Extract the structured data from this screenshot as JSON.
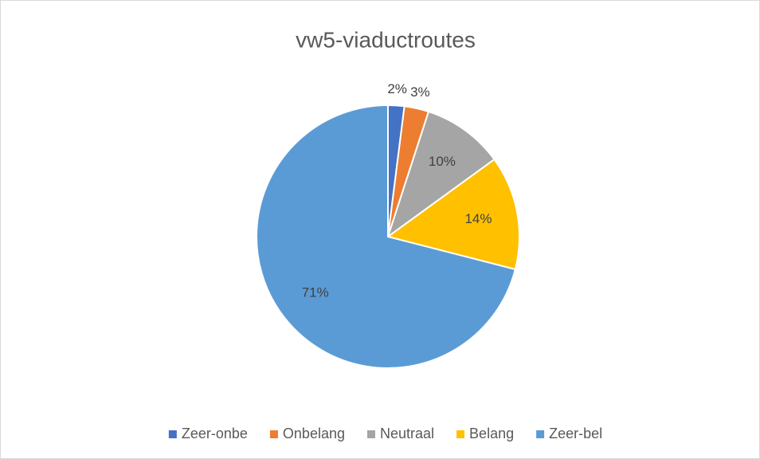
{
  "chart_data": {
    "type": "pie",
    "title": "vw5-viaductroutes",
    "categories": [
      "Zeer-onbe",
      "Onbelang",
      "Neutraal",
      "Belang",
      "Zeer-bel"
    ],
    "values": [
      2,
      3,
      10,
      14,
      71
    ],
    "value_labels": [
      "2%",
      "3%",
      "10%",
      "14%",
      "71%"
    ],
    "colors": [
      "#4472c4",
      "#ed7d31",
      "#a5a5a5",
      "#ffc000",
      "#5b9bd5"
    ],
    "legend": "bottom"
  }
}
